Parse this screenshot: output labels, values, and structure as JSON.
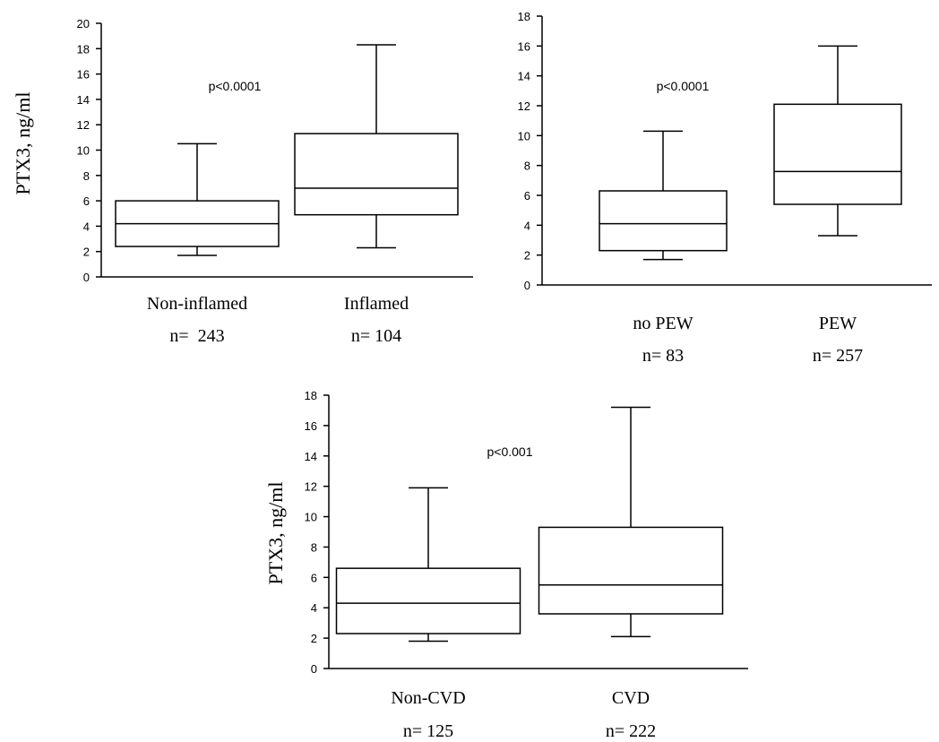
{
  "chart_data": [
    {
      "type": "box",
      "ylabel": "PTX3, ng/ml",
      "ylim": [
        0,
        20
      ],
      "yticks": [
        "0",
        "2",
        "4",
        "6",
        "8",
        "10",
        "12",
        "14",
        "16",
        "18",
        "20"
      ],
      "annotation": "p<0.0001",
      "categories": [
        "Non-inflamed",
        "Inflamed"
      ],
      "n_labels": [
        "n=  243",
        "n= 104"
      ],
      "boxes": [
        {
          "whisker_low": 1.7,
          "q1": 2.4,
          "median": 4.2,
          "q3": 6.0,
          "whisker_high": 10.5
        },
        {
          "whisker_low": 2.3,
          "q1": 4.9,
          "median": 7.0,
          "q3": 11.3,
          "whisker_high": 18.3
        }
      ]
    },
    {
      "type": "box",
      "ylabel": "",
      "ylim": [
        0,
        18
      ],
      "yticks": [
        "0",
        "2",
        "4",
        "6",
        "8",
        "10",
        "12",
        "14",
        "16",
        "18"
      ],
      "annotation": "p<0.0001",
      "categories": [
        "no PEW",
        "PEW"
      ],
      "n_labels": [
        "n= 83",
        "n= 257"
      ],
      "boxes": [
        {
          "whisker_low": 1.7,
          "q1": 2.3,
          "median": 4.1,
          "q3": 6.3,
          "whisker_high": 10.3
        },
        {
          "whisker_low": 3.3,
          "q1": 5.4,
          "median": 7.6,
          "q3": 12.1,
          "whisker_high": 16.0
        }
      ]
    },
    {
      "type": "box",
      "ylabel": "PTX3, ng/ml",
      "ylim": [
        0,
        18
      ],
      "yticks": [
        "0",
        "2",
        "4",
        "6",
        "8",
        "10",
        "12",
        "14",
        "16",
        "18"
      ],
      "annotation": "p<0.001",
      "categories": [
        "Non-CVD",
        "CVD"
      ],
      "n_labels": [
        "n= 125",
        "n= 222"
      ],
      "boxes": [
        {
          "whisker_low": 1.8,
          "q1": 2.3,
          "median": 4.3,
          "q3": 6.6,
          "whisker_high": 11.9
        },
        {
          "whisker_low": 2.1,
          "q1": 3.6,
          "median": 5.5,
          "q3": 9.3,
          "whisker_high": 17.2
        }
      ]
    }
  ]
}
